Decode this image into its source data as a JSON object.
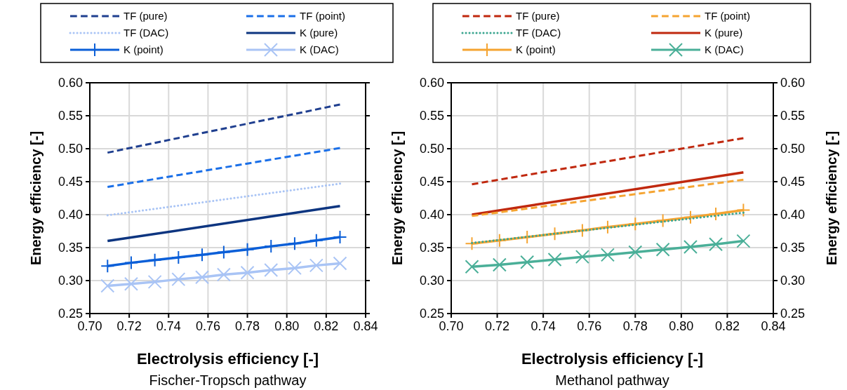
{
  "chart_data": [
    {
      "type": "line",
      "title": "Fischer-Tropsch pathway",
      "xlabel": "Electrolysis efficiency [-]",
      "ylabel": "Energy efficiency [-]",
      "xlim": [
        0.7,
        0.84
      ],
      "xticks": [
        {
          "value": 0.7,
          "label": "0.70"
        },
        {
          "value": 0.72,
          "label": "0.72"
        },
        {
          "value": 0.74,
          "label": "0.74"
        },
        {
          "value": 0.76,
          "label": "0.76"
        },
        {
          "value": 0.78,
          "label": "0.78"
        },
        {
          "value": 0.8,
          "label": "0.80"
        },
        {
          "value": 0.82,
          "label": "0.82"
        },
        {
          "value": 0.84,
          "label": "0.84"
        }
      ],
      "ylim": [
        0.25,
        0.6
      ],
      "yticks": [
        {
          "value": 0.25,
          "label": "0.25"
        },
        {
          "value": 0.3,
          "label": "0.30"
        },
        {
          "value": 0.35,
          "label": "0.35"
        },
        {
          "value": 0.4,
          "label": "0.40"
        },
        {
          "value": 0.45,
          "label": "0.45"
        },
        {
          "value": 0.5,
          "label": "0.50"
        },
        {
          "value": 0.55,
          "label": "0.55"
        },
        {
          "value": 0.6,
          "label": "0.60"
        }
      ],
      "grid": true,
      "legend": "top",
      "series": [
        {
          "name": "TF (pure)",
          "color": "#1f3f8f",
          "line_style": "dashed",
          "marker": "none",
          "x": [
            0.709,
            0.827
          ],
          "values": [
            0.494,
            0.567
          ]
        },
        {
          "name": "TF (point)",
          "color": "#1a6fe8",
          "line_style": "dashed",
          "marker": "none",
          "x": [
            0.709,
            0.827
          ],
          "values": [
            0.442,
            0.501
          ]
        },
        {
          "name": "TF (DAC)",
          "color": "#a9c4f5",
          "line_style": "dotted",
          "marker": "none",
          "x": [
            0.709,
            0.827
          ],
          "values": [
            0.399,
            0.447
          ]
        },
        {
          "name": "K (pure)",
          "color": "#0d3580",
          "line_style": "solid",
          "marker": "none",
          "x": [
            0.709,
            0.827
          ],
          "values": [
            0.36,
            0.413
          ]
        },
        {
          "name": "K (point)",
          "color": "#0b5fd8",
          "line_style": "solid",
          "marker": "plus",
          "x": [
            0.709,
            0.721,
            0.733,
            0.745,
            0.757,
            0.768,
            0.78,
            0.792,
            0.804,
            0.815,
            0.827
          ],
          "values": [
            0.322,
            0.327,
            0.331,
            0.335,
            0.339,
            0.343,
            0.347,
            0.352,
            0.356,
            0.361,
            0.366
          ]
        },
        {
          "name": "K (DAC)",
          "color": "#a9c4f5",
          "line_style": "solid",
          "marker": "cross",
          "x": [
            0.709,
            0.721,
            0.733,
            0.745,
            0.757,
            0.768,
            0.78,
            0.792,
            0.804,
            0.815,
            0.827
          ],
          "values": [
            0.292,
            0.295,
            0.298,
            0.302,
            0.305,
            0.309,
            0.312,
            0.316,
            0.319,
            0.323,
            0.326
          ]
        }
      ]
    },
    {
      "type": "line",
      "title": "Methanol pathway",
      "xlabel": "Electrolysis efficiency [-]",
      "ylabel": "Energy efficiency [-]",
      "y2label": "Energy efficiency [-]",
      "xlim": [
        0.7,
        0.84
      ],
      "xticks": [
        {
          "value": 0.7,
          "label": "0.70"
        },
        {
          "value": 0.72,
          "label": "0.72"
        },
        {
          "value": 0.74,
          "label": "0.74"
        },
        {
          "value": 0.76,
          "label": "0.76"
        },
        {
          "value": 0.78,
          "label": "0.78"
        },
        {
          "value": 0.8,
          "label": "0.80"
        },
        {
          "value": 0.82,
          "label": "0.82"
        },
        {
          "value": 0.84,
          "label": "0.84"
        }
      ],
      "ylim": [
        0.25,
        0.6
      ],
      "yticks": [
        {
          "value": 0.25,
          "label": "0.25"
        },
        {
          "value": 0.3,
          "label": "0.30"
        },
        {
          "value": 0.35,
          "label": "0.35"
        },
        {
          "value": 0.4,
          "label": "0.40"
        },
        {
          "value": 0.45,
          "label": "0.45"
        },
        {
          "value": 0.5,
          "label": "0.50"
        },
        {
          "value": 0.55,
          "label": "0.55"
        },
        {
          "value": 0.6,
          "label": "0.60"
        }
      ],
      "y2lim": [
        0.25,
        0.6
      ],
      "y2ticks": [
        {
          "value": 0.25,
          "label": "0.25"
        },
        {
          "value": 0.3,
          "label": "0.30"
        },
        {
          "value": 0.35,
          "label": "0.35"
        },
        {
          "value": 0.4,
          "label": "0.40"
        },
        {
          "value": 0.45,
          "label": "0.45"
        },
        {
          "value": 0.5,
          "label": "0.50"
        },
        {
          "value": 0.55,
          "label": "0.55"
        },
        {
          "value": 0.6,
          "label": "0.60"
        }
      ],
      "grid": true,
      "legend": "top",
      "series": [
        {
          "name": "TF (pure)",
          "color": "#c0280e",
          "line_style": "dashed",
          "marker": "none",
          "x": [
            0.709,
            0.827
          ],
          "values": [
            0.446,
            0.516
          ]
        },
        {
          "name": "TF (point)",
          "color": "#f5a431",
          "line_style": "dashed",
          "marker": "none",
          "x": [
            0.709,
            0.827
          ],
          "values": [
            0.398,
            0.453
          ]
        },
        {
          "name": "TF (DAC)",
          "color": "#3aa58f",
          "line_style": "dotted",
          "marker": "none",
          "x": [
            0.709,
            0.827
          ],
          "values": [
            0.357,
            0.403
          ]
        },
        {
          "name": "K (pure)",
          "color": "#c0280e",
          "line_style": "solid",
          "marker": "none",
          "x": [
            0.709,
            0.827
          ],
          "values": [
            0.4,
            0.464
          ]
        },
        {
          "name": "K (point)",
          "color": "#f5a431",
          "line_style": "solid",
          "marker": "plus",
          "x": [
            0.709,
            0.721,
            0.733,
            0.745,
            0.757,
            0.768,
            0.78,
            0.792,
            0.804,
            0.815,
            0.827
          ],
          "values": [
            0.356,
            0.361,
            0.366,
            0.371,
            0.376,
            0.381,
            0.386,
            0.391,
            0.396,
            0.401,
            0.407
          ]
        },
        {
          "name": "K (DAC)",
          "color": "#4aaf98",
          "line_style": "solid",
          "marker": "cross",
          "x": [
            0.709,
            0.721,
            0.733,
            0.745,
            0.757,
            0.768,
            0.78,
            0.792,
            0.804,
            0.815,
            0.827
          ],
          "values": [
            0.321,
            0.324,
            0.328,
            0.332,
            0.336,
            0.339,
            0.343,
            0.347,
            0.351,
            0.355,
            0.36
          ]
        }
      ]
    }
  ]
}
